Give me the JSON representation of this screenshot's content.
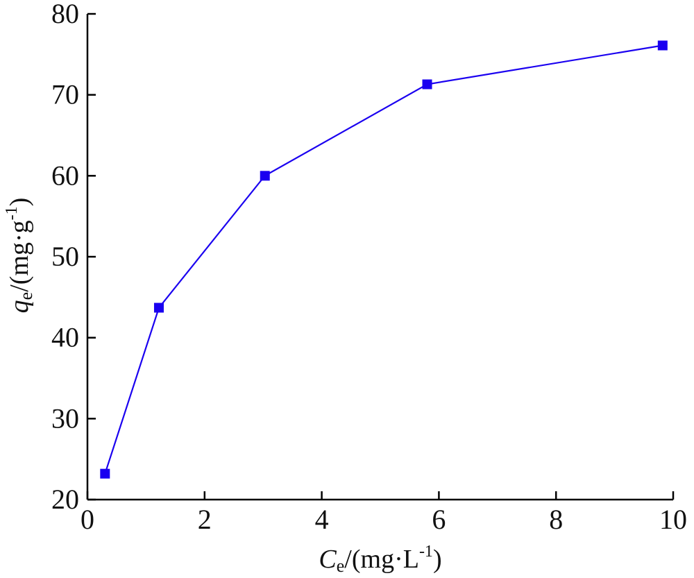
{
  "chart_data": {
    "type": "line",
    "title": "",
    "xlabel": {
      "symbol": "C",
      "subscript": "e",
      "unit_open": "/(mg·L",
      "unit_superscript": "-1",
      "unit_close": ")"
    },
    "ylabel": {
      "symbol": "q",
      "subscript": "e",
      "unit_open": "/(mg·g",
      "unit_superscript": "-1",
      "unit_close": ")"
    },
    "xlim": [
      0,
      10
    ],
    "ylim": [
      20,
      80
    ],
    "xticks": [
      0,
      2,
      4,
      6,
      8,
      10
    ],
    "yticks": [
      20,
      30,
      40,
      50,
      60,
      70,
      80
    ],
    "grid": false,
    "series": [
      {
        "color": "#1a00f0",
        "marker": "square",
        "x": [
          0.3,
          1.22,
          3.03,
          5.8,
          9.82
        ],
        "y": [
          23.2,
          43.7,
          60.0,
          71.3,
          76.1
        ]
      }
    ]
  }
}
